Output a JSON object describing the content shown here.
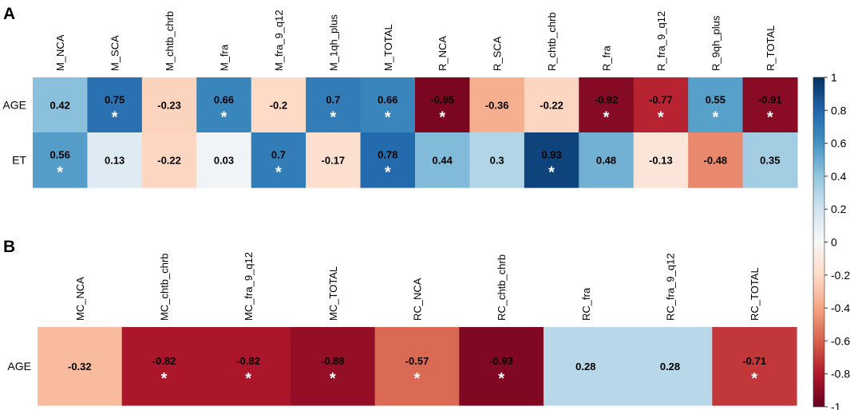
{
  "chart_data": [
    {
      "type": "heatmap",
      "panel_label": "A",
      "columns": [
        "M_NCA",
        "M_SCA",
        "M_chtb_chrb",
        "M_fra",
        "M_fra_9_q12",
        "M_1qh_plus",
        "M_TOTAL",
        "R_NCA",
        "R_SCA",
        "R_chtb_chrb",
        "R_fra",
        "R_fra_9_q12",
        "R_9qh_plus",
        "R_TOTAL"
      ],
      "rows": [
        "AGE",
        "ET"
      ],
      "values": [
        [
          0.42,
          0.75,
          -0.23,
          0.66,
          -0.2,
          0.7,
          0.66,
          -0.95,
          -0.36,
          -0.22,
          -0.92,
          -0.77,
          0.55,
          -0.91
        ],
        [
          0.56,
          0.13,
          -0.22,
          0.03,
          0.7,
          -0.17,
          0.78,
          0.44,
          0.3,
          0.93,
          0.48,
          -0.13,
          -0.48,
          0.35
        ]
      ],
      "labels": [
        [
          "0.42",
          "0.75",
          "-0.23",
          "0.66",
          "-0.2",
          "0.7",
          "0.66",
          "-0.95",
          "-0.36",
          "-0.22",
          "-0.92",
          "-0.77",
          "0.55",
          "-0.91"
        ],
        [
          "0.56",
          "0.13",
          "-0.22",
          "0.03",
          "0.7",
          "-0.17",
          "0.78",
          "0.44",
          "0.3",
          "0.93",
          "0.48",
          "-0.13",
          "-0.48",
          "0.35"
        ]
      ],
      "significant": [
        [
          false,
          true,
          false,
          true,
          false,
          true,
          true,
          true,
          false,
          false,
          true,
          true,
          true,
          true
        ],
        [
          true,
          false,
          false,
          false,
          true,
          false,
          true,
          false,
          false,
          true,
          false,
          false,
          false,
          false
        ]
      ],
      "significance_mark": "*"
    },
    {
      "type": "heatmap",
      "panel_label": "B",
      "columns": [
        "MC_NCA",
        "MC_chtb_chrb",
        "MC_fra_9_q12",
        "MC_TOTAL",
        "RC_NCA",
        "RC_chtb_chrb",
        "RC_fra",
        "RC_fra_9_q12",
        "RC_TOTAL"
      ],
      "rows": [
        "AGE"
      ],
      "values": [
        [
          -0.32,
          -0.82,
          -0.82,
          -0.88,
          -0.57,
          -0.93,
          0.28,
          0.28,
          -0.71
        ]
      ],
      "labels": [
        [
          "-0.32",
          "-0.82",
          "-0.82",
          "-0.88",
          "-0.57",
          "-0.93",
          "0.28",
          "0.28",
          "-0.71"
        ]
      ],
      "significant": [
        [
          false,
          true,
          true,
          true,
          true,
          true,
          false,
          false,
          true
        ]
      ],
      "significance_mark": "*"
    }
  ],
  "colorbar": {
    "range": [
      -1,
      1
    ],
    "ticks": [
      1,
      0.8,
      0.6,
      0.4,
      0.2,
      0,
      -0.2,
      -0.4,
      -0.6,
      -0.8,
      -1
    ],
    "tick_labels": [
      "1",
      "0.8",
      "0.6",
      "0.4",
      "0.2",
      "0",
      "-0.2",
      "-0.4",
      "-0.6",
      "-0.8",
      "-1"
    ]
  }
}
